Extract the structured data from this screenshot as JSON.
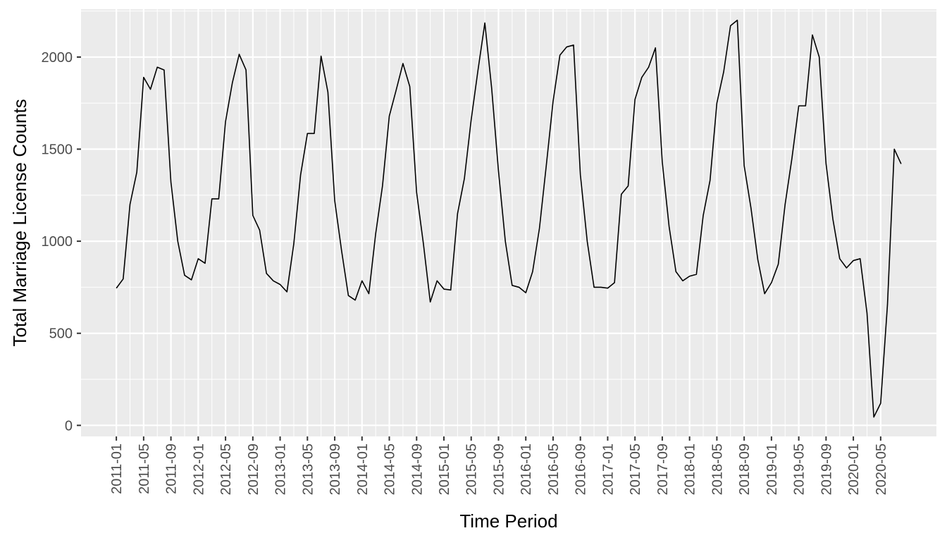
{
  "chart_data": {
    "type": "line",
    "title": "",
    "xlabel": "Time Period",
    "ylabel": "Total Marriage License Counts",
    "y_ticks": [
      0,
      500,
      1000,
      1500,
      2000
    ],
    "x_tick_labels": [
      "2011-01",
      "2011-05",
      "2011-09",
      "2012-01",
      "2012-05",
      "2012-09",
      "2013-01",
      "2013-05",
      "2013-09",
      "2014-01",
      "2014-05",
      "2014-09",
      "2015-01",
      "2015-05",
      "2015-09",
      "2016-01",
      "2016-05",
      "2016-09",
      "2017-01",
      "2017-05",
      "2017-09",
      "2018-01",
      "2018-05",
      "2018-09",
      "2019-01",
      "2019-05",
      "2019-09",
      "2020-01",
      "2020-05"
    ],
    "x_range": [
      "2011-01",
      "2020-08"
    ],
    "ylim": [
      -60,
      2260
    ],
    "grid": true,
    "legend": "none",
    "series": [
      {
        "color": "#000000",
        "x": [
          "2011-01",
          "2011-02",
          "2011-03",
          "2011-04",
          "2011-05",
          "2011-06",
          "2011-07",
          "2011-08",
          "2011-09",
          "2011-10",
          "2011-11",
          "2011-12",
          "2012-01",
          "2012-02",
          "2012-03",
          "2012-04",
          "2012-05",
          "2012-06",
          "2012-07",
          "2012-08",
          "2012-09",
          "2012-10",
          "2012-11",
          "2012-12",
          "2013-01",
          "2013-02",
          "2013-03",
          "2013-04",
          "2013-05",
          "2013-06",
          "2013-07",
          "2013-08",
          "2013-09",
          "2013-10",
          "2013-11",
          "2013-12",
          "2014-01",
          "2014-02",
          "2014-03",
          "2014-04",
          "2014-05",
          "2014-06",
          "2014-07",
          "2014-08",
          "2014-09",
          "2014-10",
          "2014-11",
          "2014-12",
          "2015-01",
          "2015-02",
          "2015-03",
          "2015-04",
          "2015-05",
          "2015-06",
          "2015-07",
          "2015-08",
          "2015-09",
          "2015-10",
          "2015-11",
          "2015-12",
          "2016-01",
          "2016-02",
          "2016-03",
          "2016-04",
          "2016-05",
          "2016-06",
          "2016-07",
          "2016-08",
          "2016-09",
          "2016-10",
          "2016-11",
          "2016-12",
          "2017-01",
          "2017-02",
          "2017-03",
          "2017-04",
          "2017-05",
          "2017-06",
          "2017-07",
          "2017-08",
          "2017-09",
          "2017-10",
          "2017-11",
          "2017-12",
          "2018-01",
          "2018-02",
          "2018-03",
          "2018-04",
          "2018-05",
          "2018-06",
          "2018-07",
          "2018-08",
          "2018-09",
          "2018-10",
          "2018-11",
          "2018-12",
          "2019-01",
          "2019-02",
          "2019-03",
          "2019-04",
          "2019-05",
          "2019-06",
          "2019-07",
          "2019-08",
          "2019-09",
          "2019-10",
          "2019-11",
          "2019-12",
          "2020-01",
          "2020-02",
          "2020-03",
          "2020-04",
          "2020-05",
          "2020-06",
          "2020-07",
          "2020-08"
        ],
        "values": [
          745,
          795,
          1200,
          1375,
          1890,
          1825,
          1945,
          1930,
          1320,
          1000,
          815,
          790,
          905,
          880,
          1230,
          1230,
          1650,
          1860,
          2015,
          1930,
          1140,
          1060,
          825,
          785,
          765,
          725,
          985,
          1360,
          1585,
          1585,
          2005,
          1810,
          1220,
          950,
          705,
          680,
          785,
          715,
          1040,
          1300,
          1680,
          1820,
          1965,
          1840,
          1265,
          985,
          670,
          785,
          740,
          735,
          1150,
          1340,
          1660,
          1930,
          2185,
          1830,
          1380,
          1000,
          760,
          750,
          720,
          835,
          1070,
          1410,
          1760,
          2010,
          2055,
          2065,
          1360,
          1000,
          750,
          750,
          745,
          775,
          1255,
          1300,
          1770,
          1890,
          1945,
          2050,
          1430,
          1080,
          835,
          785,
          810,
          820,
          1140,
          1330,
          1750,
          1920,
          2170,
          2200,
          1410,
          1180,
          900,
          715,
          775,
          875,
          1200,
          1450,
          1735,
          1735,
          2120,
          2000,
          1420,
          1120,
          905,
          855,
          895,
          905,
          610,
          45,
          120,
          655,
          1500,
          1420
        ]
      }
    ]
  }
}
